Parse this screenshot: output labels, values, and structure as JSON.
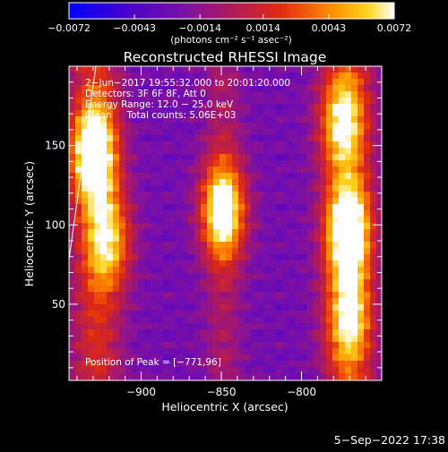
{
  "chart_data": {
    "type": "heatmap",
    "title": "Reconstructed RHESSI Image",
    "xlabel": "Heliocentric X (arcsec)",
    "ylabel": "Heliocentric Y (arcsec)",
    "xlim": [
      -945,
      -750
    ],
    "ylim": [
      2,
      200
    ],
    "x_ticks": [
      -900,
      -850,
      -800
    ],
    "x_tick_labels": [
      "−900",
      "−850",
      "−800"
    ],
    "y_ticks": [
      50,
      100,
      150
    ],
    "y_tick_labels": [
      "50",
      "100",
      "150"
    ],
    "colorbar": {
      "min": -0.0072,
      "max": 0.0072,
      "ticks": [
        -0.0072,
        -0.0043,
        -0.0014,
        0.0014,
        0.0043,
        0.0072
      ],
      "tick_labels": [
        "−0.0072",
        "−0.0043",
        "−0.0014",
        "0.0014",
        "0.0043",
        "0.0072"
      ],
      "units_label": "(photons cm⁻² s⁻¹ asec⁻²)"
    },
    "info_lines": [
      "2−Jun−2017 19:55:32.000 to 20:01:20.000",
      "Detectors: 3F 6F 8F, Att 0",
      "Energy Range: 12.0 − 25.0 keV",
      "Clean     Total counts: 5.06E+03"
    ],
    "peak_label": "Position of Peak = [−771,96]",
    "peak_position": [
      -771,
      96
    ],
    "sources": [
      {
        "x": -930,
        "y": 145,
        "amp": 0.0072
      },
      {
        "x": -849,
        "y": 109,
        "amp": 0.0072
      },
      {
        "x": -771,
        "y": 96,
        "amp": 0.0072
      },
      {
        "x": -920,
        "y": 90,
        "amp": 0.0048
      },
      {
        "x": -775,
        "y": 165,
        "amp": 0.005
      },
      {
        "x": -770,
        "y": 40,
        "amp": 0.0046
      }
    ],
    "grid": false,
    "background_level": -0.0025
  },
  "timestamp": "5−Sep−2022 17:38"
}
